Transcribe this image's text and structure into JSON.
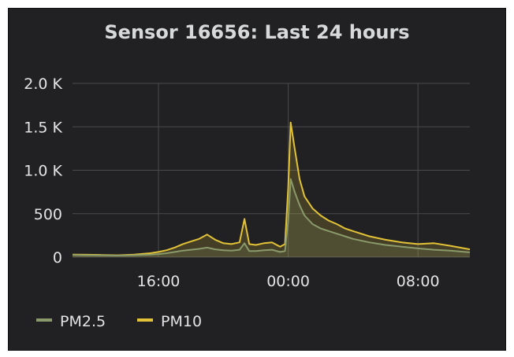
{
  "colors": {
    "background": "#212124",
    "grid": "#4a4a4d",
    "pm25": "#8a9a6b",
    "pm10": "#e2c236"
  },
  "chart_data": {
    "type": "area",
    "title": "Sensor 16656: Last 24 hours",
    "xlabel": "",
    "ylabel": "",
    "ylim": [
      0,
      2000
    ],
    "grid": true,
    "legend_position": "bottom-left",
    "y_ticks": [
      {
        "value": 2000,
        "label": "2.0 K"
      },
      {
        "value": 1500,
        "label": "1.5 K"
      },
      {
        "value": 1000,
        "label": "1.0 K"
      },
      {
        "value": 500,
        "label": "500"
      },
      {
        "value": 0,
        "label": "0"
      }
    ],
    "x_ticks": [
      {
        "hours": 16,
        "label": "16:00"
      },
      {
        "hours": 24,
        "label": "00:00"
      },
      {
        "hours": 32,
        "label": "08:00"
      }
    ],
    "x_range_hours": [
      10.7,
      35.2
    ],
    "series": [
      {
        "name": "PM2.5",
        "points": [
          [
            10.7,
            25
          ],
          [
            11.5,
            22
          ],
          [
            12.5,
            20
          ],
          [
            13.5,
            18
          ],
          [
            14.5,
            22
          ],
          [
            15.5,
            28
          ],
          [
            16.0,
            35
          ],
          [
            16.5,
            45
          ],
          [
            17.0,
            60
          ],
          [
            17.5,
            75
          ],
          [
            18.0,
            85
          ],
          [
            18.5,
            95
          ],
          [
            19.0,
            110
          ],
          [
            19.5,
            90
          ],
          [
            20.0,
            80
          ],
          [
            20.5,
            75
          ],
          [
            21.0,
            85
          ],
          [
            21.3,
            160
          ],
          [
            21.6,
            70
          ],
          [
            22.0,
            70
          ],
          [
            22.5,
            80
          ],
          [
            23.0,
            85
          ],
          [
            23.5,
            60
          ],
          [
            23.8,
            70
          ],
          [
            24.0,
            420
          ],
          [
            24.15,
            900
          ],
          [
            24.4,
            750
          ],
          [
            24.7,
            600
          ],
          [
            25.0,
            480
          ],
          [
            25.5,
            380
          ],
          [
            26.0,
            330
          ],
          [
            26.5,
            300
          ],
          [
            27.0,
            270
          ],
          [
            27.5,
            240
          ],
          [
            28.0,
            210
          ],
          [
            29.0,
            170
          ],
          [
            30.0,
            140
          ],
          [
            31.0,
            120
          ],
          [
            32.0,
            100
          ],
          [
            33.0,
            85
          ],
          [
            34.0,
            75
          ],
          [
            35.2,
            55
          ]
        ]
      },
      {
        "name": "PM10",
        "points": [
          [
            10.7,
            30
          ],
          [
            11.5,
            28
          ],
          [
            12.5,
            25
          ],
          [
            13.5,
            22
          ],
          [
            14.5,
            30
          ],
          [
            15.5,
            45
          ],
          [
            16.0,
            60
          ],
          [
            16.5,
            80
          ],
          [
            17.0,
            110
          ],
          [
            17.5,
            150
          ],
          [
            18.0,
            180
          ],
          [
            18.5,
            210
          ],
          [
            19.0,
            260
          ],
          [
            19.5,
            200
          ],
          [
            20.0,
            160
          ],
          [
            20.5,
            150
          ],
          [
            21.0,
            170
          ],
          [
            21.3,
            440
          ],
          [
            21.6,
            150
          ],
          [
            22.0,
            140
          ],
          [
            22.5,
            160
          ],
          [
            23.0,
            170
          ],
          [
            23.5,
            120
          ],
          [
            23.8,
            150
          ],
          [
            24.0,
            800
          ],
          [
            24.15,
            1550
          ],
          [
            24.4,
            1250
          ],
          [
            24.7,
            900
          ],
          [
            25.0,
            700
          ],
          [
            25.5,
            560
          ],
          [
            26.0,
            480
          ],
          [
            26.5,
            420
          ],
          [
            27.0,
            380
          ],
          [
            27.5,
            330
          ],
          [
            28.0,
            300
          ],
          [
            29.0,
            240
          ],
          [
            30.0,
            200
          ],
          [
            31.0,
            170
          ],
          [
            32.0,
            150
          ],
          [
            33.0,
            160
          ],
          [
            34.0,
            130
          ],
          [
            35.2,
            90
          ]
        ]
      }
    ]
  }
}
